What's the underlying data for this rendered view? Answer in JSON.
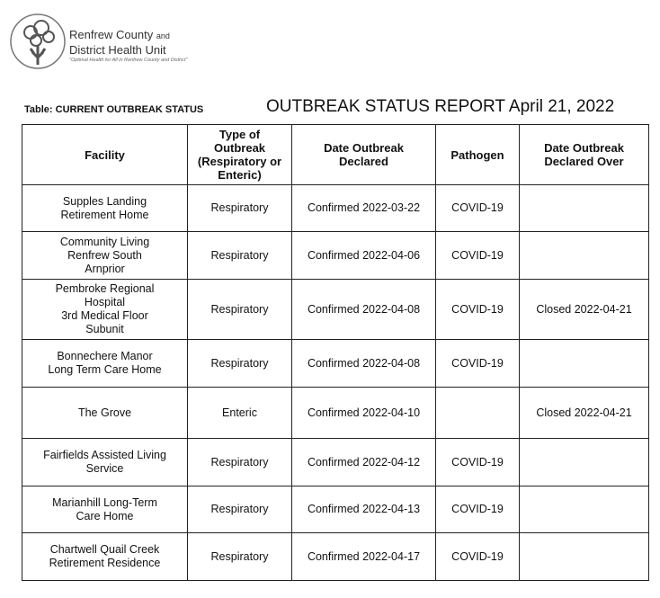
{
  "header": {
    "org_name_1": "Renfrew County",
    "org_name_1_suffix": "and",
    "org_name_2": "District Health Unit",
    "tagline": "\"Optimal Health for All in Renfrew County and District\"",
    "table_label": "Table: CURRENT OUTBREAK STATUS",
    "title": "OUTBREAK STATUS REPORT April 21, 2022"
  },
  "table": {
    "columns": [
      "Facility",
      "Type of Outbreak (Respiratory or Enteric)",
      "Date Outbreak Declared",
      "Pathogen",
      "Date Outbreak Declared Over"
    ],
    "rows": [
      {
        "facility": [
          "Supples Landing",
          "Retirement Home"
        ],
        "type": "Respiratory",
        "declared": "Confirmed 2022-03-22",
        "pathogen": "COVID-19"
      },
      {
        "facility": [
          "Community Living",
          "Renfrew South",
          "Arnprior"
        ],
        "type": "Respiratory",
        "declared": "Confirmed 2022-04-06",
        "pathogen": "COVID-19"
      },
      {
        "facility": [
          "Pembroke Regional",
          "Hospital",
          "3rd Medical Floor",
          "Subunit"
        ],
        "type": "Respiratory",
        "declared": "Confirmed 2022-04-08",
        "pathogen": "COVID-19",
        "over": "Closed 2022-04-21"
      },
      {
        "facility": [
          "Bonnechere Manor",
          "Long Term Care Home"
        ],
        "type": "Respiratory",
        "declared": "Confirmed 2022-04-08",
        "pathogen": "COVID-19"
      },
      {
        "facility": [
          "The Grove"
        ],
        "type": "Enteric",
        "declared": "Confirmed 2022-04-10",
        "over": "Closed 2022-04-21"
      },
      {
        "facility": [
          "Fairfields Assisted Living",
          "Service"
        ],
        "type": "Respiratory",
        "declared": "Confirmed 2022-04-12",
        "pathogen": "COVID-19"
      },
      {
        "facility": [
          "Marianhill Long-Term",
          "Care Home"
        ],
        "type": "Respiratory",
        "declared": "Confirmed 2022-04-13",
        "pathogen": "COVID-19"
      },
      {
        "facility": [
          "Chartwell Quail Creek",
          "Retirement Residence"
        ],
        "type": "Respiratory",
        "declared": "Confirmed 2022-04-17",
        "pathogen": "COVID-19"
      }
    ]
  }
}
